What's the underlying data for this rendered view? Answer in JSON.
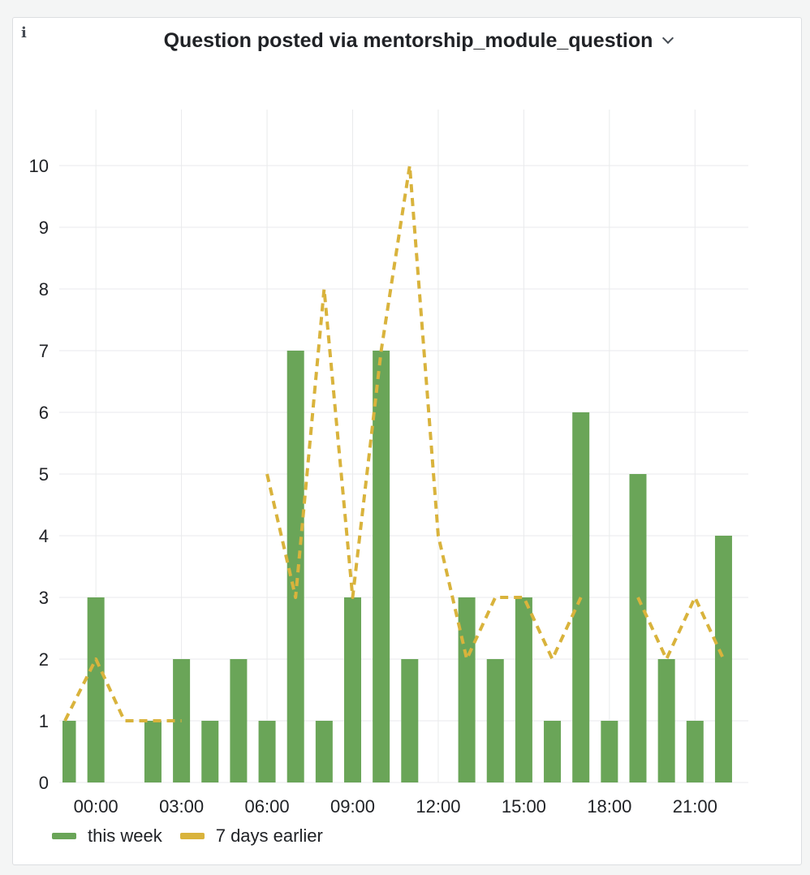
{
  "panel": {
    "title": "Question posted via mentorship_module_question",
    "info_icon": "info-icon",
    "menu_icon": "chevron-down-icon"
  },
  "colors": {
    "this_week": "#6aa558",
    "days_earlier": "#d9b33c",
    "grid": "#e9eaec",
    "axis_text": "#202226"
  },
  "chart_data": {
    "type": "bar",
    "title": "Question posted via mentorship_module_question",
    "xlabel": "",
    "ylabel": "",
    "x_tick_labels": [
      "00:00",
      "03:00",
      "06:00",
      "09:00",
      "12:00",
      "15:00",
      "18:00",
      "21:00"
    ],
    "y_ticks": [
      0,
      1,
      2,
      3,
      4,
      5,
      6,
      7,
      8,
      9,
      10
    ],
    "ylim": [
      0,
      11
    ],
    "grid": true,
    "legend_position": "bottom-left",
    "series": [
      {
        "name": "this week",
        "type": "bar",
        "hours": [
          "23:00",
          "00:00",
          "01:00",
          "02:00",
          "03:00",
          "04:00",
          "05:00",
          "06:00",
          "07:00",
          "08:00",
          "09:00",
          "10:00",
          "11:00",
          "12:00",
          "13:00",
          "14:00",
          "15:00",
          "16:00",
          "17:00",
          "18:00",
          "19:00",
          "20:00",
          "21:00",
          "22:00"
        ],
        "values": [
          1,
          3,
          0,
          1,
          2,
          1,
          2,
          1,
          7,
          1,
          3,
          7,
          2,
          0,
          3,
          2,
          3,
          1,
          6,
          1,
          5,
          2,
          1,
          4
        ]
      },
      {
        "name": "7 days earlier",
        "type": "line",
        "style": "dashed",
        "hours": [
          "23:00",
          "00:00",
          "01:00",
          "02:00",
          "03:00",
          "04:00",
          "05:00",
          "06:00",
          "07:00",
          "08:00",
          "09:00",
          "10:00",
          "11:00",
          "12:00",
          "13:00",
          "14:00",
          "15:00",
          "16:00",
          "17:00",
          "18:00",
          "19:00",
          "20:00",
          "21:00",
          "22:00"
        ],
        "values": [
          1,
          2,
          1,
          1,
          1,
          null,
          null,
          5,
          3,
          8,
          3,
          7,
          10,
          4,
          2,
          3,
          3,
          2,
          3,
          null,
          3,
          2,
          3,
          2
        ]
      }
    ]
  },
  "legend": {
    "items": [
      {
        "label": "this week"
      },
      {
        "label": "7 days earlier"
      }
    ]
  }
}
